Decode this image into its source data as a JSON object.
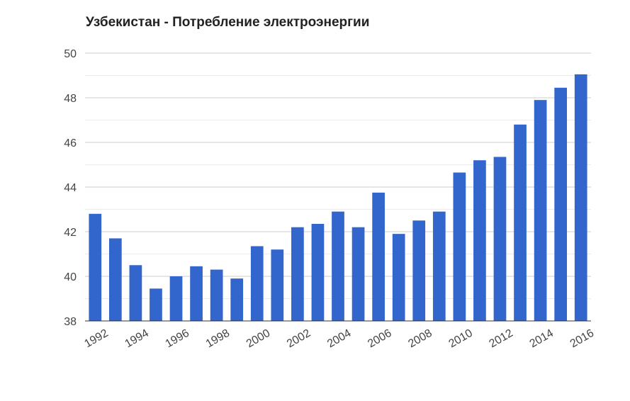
{
  "chart_data": {
    "type": "bar",
    "title": "Узбекистан - Потребление электроэнергии",
    "xlabel": "",
    "ylabel": "",
    "categories": [
      "1992",
      "1993",
      "1994",
      "1995",
      "1996",
      "1997",
      "1998",
      "1999",
      "2000",
      "2001",
      "2002",
      "2003",
      "2004",
      "2005",
      "2006",
      "2007",
      "2008",
      "2009",
      "2010",
      "2011",
      "2012",
      "2013",
      "2014",
      "2015",
      "2016"
    ],
    "x_tick_labels": [
      "1992",
      "1994",
      "1996",
      "1998",
      "2000",
      "2002",
      "2004",
      "2006",
      "2008",
      "2010",
      "2012",
      "2014",
      "2016"
    ],
    "values": [
      42.8,
      41.7,
      40.5,
      39.45,
      40.0,
      40.45,
      40.3,
      39.9,
      41.35,
      41.2,
      42.2,
      42.35,
      42.9,
      42.2,
      43.75,
      41.9,
      42.5,
      42.9,
      44.65,
      45.2,
      45.35,
      46.8,
      47.9,
      48.45,
      49.05
    ],
    "ylim": [
      38,
      50
    ],
    "y_ticks": [
      38,
      40,
      42,
      44,
      46,
      48,
      50
    ],
    "grid": true,
    "legend": "none",
    "bar_color": "#3366cc"
  }
}
